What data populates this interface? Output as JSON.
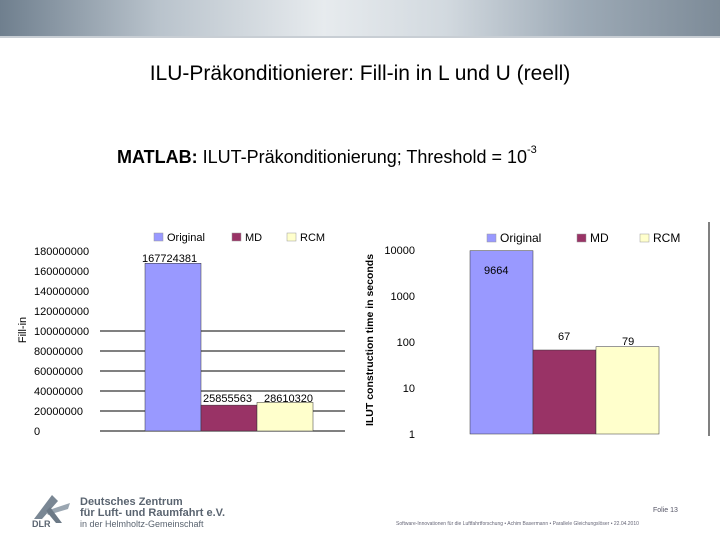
{
  "slide": {
    "title": "ILU-Präkonditionierer: Fill-in in L und U (reell)",
    "subtitle_bold": "MATLAB:",
    "subtitle_rest": " ILUT-Präkonditionierung; Threshold = 10",
    "subtitle_exp": "-3"
  },
  "footer": {
    "org_line1": "Deutsches Zentrum",
    "org_line2": "für Luft- und Raumfahrt e.V.",
    "org_line3": "in der Helmholtz-Gemeinschaft",
    "logo_text": "DLR",
    "page": "Folie 13",
    "info": "Software-Innovationen für die Luftfahrtforschung • Achim Basermann • Parallele Gleichungslöser • 22.04.2010"
  },
  "colors": {
    "original": "#9999ff",
    "md": "#993366",
    "rcm": "#ffffcc"
  },
  "chart_data": [
    {
      "type": "bar",
      "ylabel": "Fill-in",
      "categories": [
        ""
      ],
      "series": [
        {
          "name": "Original",
          "values": [
            167724381
          ],
          "label": "167724381"
        },
        {
          "name": "MD",
          "values": [
            25855563
          ],
          "label": "25855563"
        },
        {
          "name": "RCM",
          "values": [
            28610320
          ],
          "label": "28610320"
        }
      ],
      "ylim": [
        0,
        180000000
      ],
      "yticks": [
        "0",
        "20000000",
        "40000000",
        "60000000",
        "80000000",
        "100000000",
        "120000000",
        "140000000",
        "160000000",
        "180000000"
      ],
      "legend": "top",
      "grid": true
    },
    {
      "type": "bar",
      "ylabel": "ILUT construction time in seconds",
      "yscale": "log",
      "categories": [
        ""
      ],
      "series": [
        {
          "name": "Original",
          "values": [
            9664
          ],
          "label": "9664"
        },
        {
          "name": "MD",
          "values": [
            67
          ],
          "label": "67"
        },
        {
          "name": "RCM",
          "values": [
            79
          ],
          "label": "79"
        }
      ],
      "ylim": [
        1,
        10000
      ],
      "yticks": [
        "1",
        "10",
        "100",
        "1000",
        "10000"
      ],
      "legend": "top",
      "grid": false
    }
  ]
}
